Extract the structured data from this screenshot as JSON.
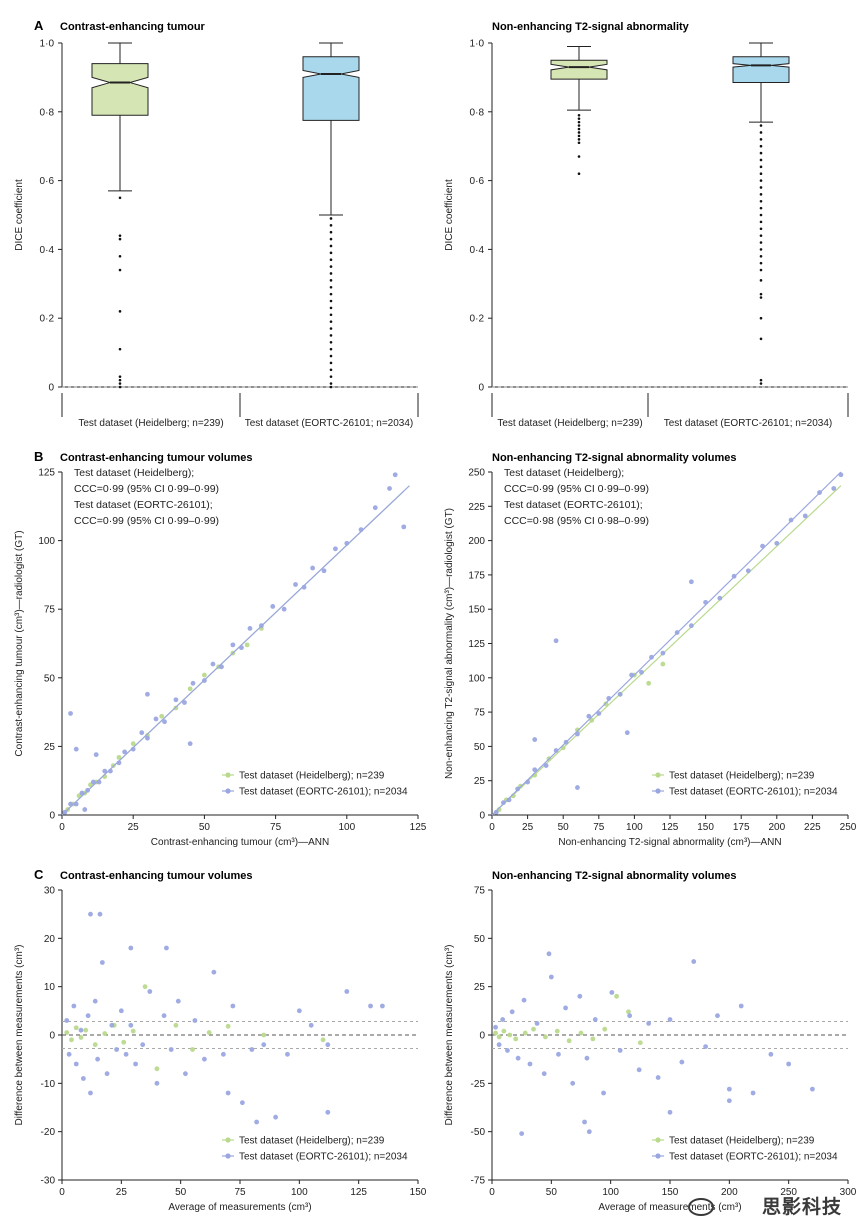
{
  "panels": {
    "A": {
      "letter": "A",
      "left_title": "Contrast-enhancing tumour",
      "right_title": "Non-enhancing T2-signal abnormality",
      "ylabel": "DICE coefficient"
    },
    "B": {
      "letter": "B",
      "left_title": "Contrast-enhancing tumour volumes",
      "right_title": "Non-enhancing T2-signal abnormality volumes"
    },
    "C": {
      "letter": "C",
      "left_title": "Contrast-enhancing tumour volumes",
      "right_title": "Non-enhancing T2-signal abnormality volumes"
    }
  },
  "colors": {
    "heidelberg": "#b9d98c",
    "eortc": "#9aa6e0",
    "box_green": "#d6e5b4",
    "box_blue": "#a9d8ec",
    "axis": "#222222",
    "dash": "#888888",
    "limit": "#aaaaaa"
  },
  "watermark": "思影科技",
  "chart_data": [
    {
      "id": "A-left",
      "type": "box",
      "title": "Contrast-enhancing tumour",
      "xlabel": "",
      "ylabel": "DICE coefficient",
      "ylim": [
        0,
        1
      ],
      "yticks": [
        "0",
        "0·2",
        "0·4",
        "0·6",
        "0·8",
        "1·0"
      ],
      "reference_line": 0,
      "categories": [
        "Test dataset (Heidelberg; n=239)",
        "Test dataset (EORTC-26101; n=2034)"
      ],
      "boxes": [
        {
          "name": "Test dataset (Heidelberg; n=239)",
          "whisker_low": 0.57,
          "q1": 0.79,
          "median": 0.885,
          "q3": 0.94,
          "whisker_high": 1.0,
          "notch_low": 0.87,
          "notch_high": 0.9,
          "color": "green",
          "outliers": [
            0.55,
            0.44,
            0.43,
            0.38,
            0.34,
            0.22,
            0.11,
            0.03,
            0.02,
            0.01,
            0.0
          ]
        },
        {
          "name": "Test dataset (EORTC-26101; n=2034)",
          "whisker_low": 0.5,
          "q1": 0.775,
          "median": 0.91,
          "q3": 0.96,
          "whisker_high": 1.0,
          "notch_low": 0.9,
          "notch_high": 0.92,
          "color": "blue",
          "outliers": [
            0.49,
            0.47,
            0.45,
            0.43,
            0.41,
            0.39,
            0.37,
            0.35,
            0.33,
            0.31,
            0.29,
            0.27,
            0.25,
            0.23,
            0.21,
            0.19,
            0.17,
            0.15,
            0.13,
            0.11,
            0.09,
            0.07,
            0.05,
            0.03,
            0.01,
            0.0
          ]
        }
      ]
    },
    {
      "id": "A-right",
      "type": "box",
      "title": "Non-enhancing T2-signal abnormality",
      "xlabel": "",
      "ylabel": "DICE coefficient",
      "ylim": [
        0,
        1
      ],
      "yticks": [
        "0",
        "0·2",
        "0·4",
        "0·6",
        "0·8",
        "1·0"
      ],
      "reference_line": 0,
      "categories": [
        "Test dataset (Heidelberg; n=239)",
        "Test dataset (EORTC-26101; n=2034)"
      ],
      "boxes": [
        {
          "name": "Test dataset (Heidelberg; n=239)",
          "whisker_low": 0.805,
          "q1": 0.895,
          "median": 0.93,
          "q3": 0.95,
          "whisker_high": 0.99,
          "notch_low": 0.922,
          "notch_high": 0.938,
          "color": "green",
          "outliers": [
            0.79,
            0.78,
            0.77,
            0.76,
            0.75,
            0.74,
            0.73,
            0.72,
            0.71,
            0.67,
            0.62
          ]
        },
        {
          "name": "Test dataset (EORTC-26101; n=2034)",
          "whisker_low": 0.77,
          "q1": 0.885,
          "median": 0.935,
          "q3": 0.96,
          "whisker_high": 1.0,
          "notch_low": 0.93,
          "notch_high": 0.94,
          "color": "blue",
          "outliers": [
            0.76,
            0.74,
            0.72,
            0.7,
            0.68,
            0.66,
            0.64,
            0.62,
            0.6,
            0.58,
            0.56,
            0.54,
            0.52,
            0.5,
            0.48,
            0.46,
            0.44,
            0.42,
            0.4,
            0.38,
            0.36,
            0.34,
            0.31,
            0.27,
            0.26,
            0.2,
            0.14,
            0.02,
            0.01
          ]
        }
      ]
    },
    {
      "id": "B-left",
      "type": "scatter",
      "title": "Contrast-enhancing tumour volumes",
      "xlabel": "Contrast-enhancing tumour (cm³)—ANN",
      "ylabel": "Contrast-enhancing tumour (cm³)—radiologist (GT)",
      "xlim": [
        0,
        125
      ],
      "ylim": [
        0,
        125
      ],
      "xticks": [
        0,
        25,
        50,
        75,
        100,
        125
      ],
      "yticks": [
        0,
        25,
        50,
        75,
        100,
        125
      ],
      "annotations": [
        "Test dataset (Heidelberg);",
        "CCC=0·99 (95% CI 0·99–0·99)",
        "Test dataset (EORTC-26101);",
        "CCC=0·99 (95% CI 0·99–0·99)"
      ],
      "legend_position": "bottom-right",
      "series": [
        {
          "name": "Test dataset (Heidelberg); n=239",
          "color": "green",
          "fit": [
            [
              0,
              0
            ],
            [
              120,
              118
            ]
          ],
          "x": [
            2,
            4,
            6,
            8,
            10,
            12,
            15,
            18,
            20,
            25,
            30,
            35,
            40,
            45,
            50,
            55,
            60,
            65,
            70
          ],
          "y": [
            2,
            4,
            7,
            8,
            11,
            12,
            14,
            18,
            21,
            26,
            29,
            36,
            39,
            46,
            51,
            54,
            59,
            62,
            68
          ]
        },
        {
          "name": "Test dataset (EORTC-26101); n=2034",
          "color": "blue",
          "fit": [
            [
              0,
              0
            ],
            [
              122,
              120
            ]
          ],
          "x": [
            1,
            3,
            5,
            7,
            9,
            11,
            13,
            15,
            17,
            20,
            22,
            25,
            28,
            30,
            33,
            36,
            40,
            43,
            46,
            50,
            53,
            56,
            60,
            63,
            66,
            70,
            74,
            78,
            82,
            85,
            88,
            92,
            96,
            100,
            105,
            110,
            115,
            117,
            120,
            3,
            5,
            8,
            12,
            30,
            45
          ],
          "y": [
            1,
            4,
            4,
            8,
            9,
            12,
            12,
            16,
            16,
            19,
            23,
            24,
            30,
            28,
            35,
            34,
            42,
            41,
            48,
            49,
            55,
            54,
            62,
            61,
            68,
            69,
            76,
            75,
            84,
            83,
            90,
            89,
            97,
            99,
            104,
            112,
            119,
            124,
            105,
            37,
            24,
            2,
            22,
            44,
            26
          ]
        }
      ]
    },
    {
      "id": "B-right",
      "type": "scatter",
      "title": "Non-enhancing T2-signal abnormality volumes",
      "xlabel": "Non-enhancing T2-signal abnormality (cm³)—ANN",
      "ylabel": "Non-enhancing T2-signal abnormality (cm³)—radiologist (GT)",
      "xlim": [
        0,
        250
      ],
      "ylim": [
        0,
        250
      ],
      "xticks": [
        0,
        25,
        50,
        75,
        100,
        125,
        150,
        175,
        200,
        225,
        250
      ],
      "yticks": [
        0,
        25,
        50,
        75,
        100,
        125,
        150,
        175,
        200,
        225,
        250
      ],
      "annotations": [
        "Test dataset (Heidelberg);",
        "CCC=0·99 (95% CI 0·99–0·99)",
        "Test dataset (EORTC-26101);",
        "CCC=0·98 (95% CI 0·98–0·99)"
      ],
      "legend_position": "bottom-right",
      "series": [
        {
          "name": "Test dataset (Heidelberg); n=239",
          "color": "green",
          "fit": [
            [
              0,
              0
            ],
            [
              245,
              240
            ]
          ],
          "x": [
            5,
            10,
            15,
            20,
            30,
            40,
            50,
            60,
            70,
            80,
            90,
            100,
            110,
            120
          ],
          "y": [
            4,
            11,
            14,
            21,
            29,
            41,
            49,
            62,
            69,
            81,
            88,
            102,
            96,
            110
          ]
        },
        {
          "name": "Test dataset (EORTC-26101); n=2034",
          "color": "blue",
          "fit": [
            [
              0,
              0
            ],
            [
              245,
              250
            ]
          ],
          "x": [
            3,
            8,
            12,
            18,
            25,
            30,
            38,
            45,
            52,
            60,
            68,
            75,
            82,
            90,
            98,
            105,
            112,
            120,
            130,
            140,
            150,
            160,
            170,
            180,
            190,
            200,
            210,
            220,
            230,
            240,
            245,
            45,
            60,
            30,
            95,
            140
          ],
          "y": [
            2,
            9,
            11,
            19,
            24,
            33,
            36,
            47,
            53,
            59,
            72,
            74,
            85,
            88,
            102,
            104,
            115,
            118,
            133,
            138,
            155,
            158,
            174,
            178,
            196,
            198,
            215,
            218,
            235,
            238,
            248,
            127,
            20,
            55,
            60,
            170
          ]
        }
      ]
    },
    {
      "id": "C-left",
      "type": "scatter",
      "title": "Contrast-enhancing tumour volumes",
      "xlabel": "Average of measurements (cm³)",
      "ylabel": "Difference between measurements (cm³)",
      "xlim": [
        0,
        150
      ],
      "ylim": [
        -30,
        30
      ],
      "xticks": [
        0,
        25,
        50,
        75,
        100,
        125,
        150
      ],
      "yticks": [
        -30,
        -20,
        -10,
        0,
        10,
        20,
        30
      ],
      "reference_line": 0,
      "limits_of_agreement": [
        2.8,
        -2.8
      ],
      "legend_position": "bottom-right",
      "series": [
        {
          "name": "Test dataset (Heidelberg); n=239",
          "color": "green",
          "x": [
            2,
            4,
            6,
            8,
            10,
            14,
            18,
            22,
            26,
            30,
            35,
            40,
            48,
            55,
            62,
            70,
            85,
            110
          ],
          "y": [
            0.5,
            -1,
            1.5,
            -0.5,
            1,
            -2,
            0.3,
            2,
            -1.5,
            0.8,
            10,
            -7,
            2,
            -3,
            0.5,
            1.8,
            0,
            -1
          ]
        },
        {
          "name": "Test dataset (EORTC-26101); n=2034",
          "color": "blue",
          "x": [
            2,
            3,
            5,
            6,
            8,
            9,
            11,
            12,
            14,
            15,
            17,
            19,
            21,
            23,
            25,
            27,
            29,
            31,
            34,
            37,
            40,
            43,
            46,
            49,
            52,
            56,
            60,
            64,
            68,
            72,
            76,
            80,
            85,
            90,
            95,
            100,
            105,
            112,
            120,
            130,
            135,
            12,
            16,
            29,
            44,
            70,
            82,
            112
          ],
          "y": [
            3,
            -4,
            6,
            -6,
            1,
            -9,
            4,
            -12,
            7,
            -5,
            15,
            -8,
            2,
            -3,
            5,
            -4,
            18,
            -6,
            -2,
            9,
            -10,
            4,
            -3,
            7,
            -8,
            3,
            -5,
            13,
            -4,
            6,
            -14,
            -3,
            -2,
            -17,
            -4,
            5,
            2,
            -2,
            9,
            6,
            6,
            25,
            25,
            2,
            18,
            -12,
            -18,
            -16
          ]
        }
      ]
    },
    {
      "id": "C-right",
      "type": "scatter",
      "title": "Non-enhancing T2-signal abnormality volumes",
      "xlabel": "Average of measurements (cm³)",
      "ylabel": "Difference between measurements (cm³)",
      "xlim": [
        0,
        300
      ],
      "ylim": [
        -75,
        75
      ],
      "xticks": [
        0,
        50,
        100,
        150,
        200,
        250,
        300
      ],
      "yticks": [
        -75,
        -50,
        -25,
        0,
        25,
        50,
        75
      ],
      "reference_line": 0,
      "limits_of_agreement": [
        7,
        -7
      ],
      "legend_position": "bottom-right",
      "series": [
        {
          "name": "Test dataset (Heidelberg); n=239",
          "color": "green",
          "x": [
            3,
            6,
            10,
            15,
            20,
            28,
            35,
            45,
            55,
            65,
            75,
            85,
            95,
            105,
            115,
            125
          ],
          "y": [
            1,
            -1,
            2,
            0,
            -2,
            1,
            3,
            -1,
            2,
            -3,
            1,
            -2,
            3,
            20,
            12,
            -4
          ]
        },
        {
          "name": "Test dataset (EORTC-26101); n=2034",
          "color": "blue",
          "x": [
            3,
            6,
            9,
            13,
            17,
            22,
            27,
            32,
            38,
            44,
            50,
            56,
            62,
            68,
            74,
            80,
            87,
            94,
            101,
            108,
            116,
            124,
            132,
            140,
            150,
            160,
            170,
            180,
            190,
            200,
            210,
            220,
            235,
            250,
            270,
            25,
            48,
            78,
            82,
            150,
            200
          ],
          "y": [
            4,
            -5,
            8,
            -8,
            12,
            -12,
            18,
            -15,
            6,
            -20,
            30,
            -10,
            14,
            -25,
            20,
            -12,
            8,
            -30,
            22,
            -8,
            10,
            -18,
            6,
            -22,
            8,
            -14,
            38,
            -6,
            10,
            -28,
            15,
            -30,
            -10,
            -15,
            -28,
            -51,
            42,
            -45,
            -50,
            -40,
            -34
          ]
        }
      ]
    }
  ]
}
